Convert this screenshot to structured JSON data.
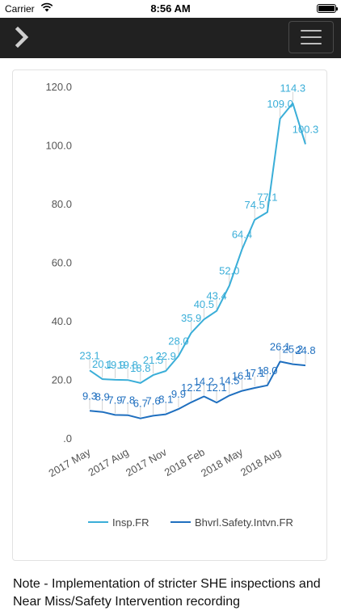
{
  "status_bar": {
    "carrier": "Carrier",
    "time": "8:56 AM",
    "battery": "full"
  },
  "nav": {
    "back_icon": "chevron-right-icon",
    "menu_icon": "hamburger-menu-icon"
  },
  "chart_data": {
    "type": "line",
    "y_ticks": [
      "120.0",
      "100.0",
      "80.0",
      "60.0",
      "40.0",
      "20.0",
      ".0"
    ],
    "ylim": [
      0,
      120
    ],
    "x_tick_labels": [
      "2017 May",
      "2017 Aug",
      "2017 Nov",
      "2018 Feb",
      "2018 May",
      "2018 Aug"
    ],
    "legend_position": "bottom",
    "colors": {
      "insp": "#3aaed8",
      "bhvrl": "#1f6fbf"
    },
    "series": [
      {
        "name": "Insp.FR",
        "values": [
          23.1,
          20.1,
          19.9,
          19.8,
          18.8,
          21.5,
          22.9,
          28.0,
          35.9,
          40.5,
          43.4,
          52.0,
          64.4,
          74.5,
          77.1,
          109.0,
          114.3,
          100.3
        ],
        "labels": [
          "23.1",
          "20.1",
          "19.9",
          "19.8",
          "18.8",
          "21.5",
          "22.9",
          "28.0",
          "35.9",
          "40.5",
          "43.4",
          "52.0",
          "64.4",
          "74.5",
          "77.1",
          "109.0",
          "114.3",
          "100.3"
        ]
      },
      {
        "name": "Bhvrl.Safety.Intvn.FR",
        "values": [
          9.3,
          8.9,
          7.9,
          7.8,
          6.7,
          7.6,
          8.1,
          9.9,
          12.2,
          14.2,
          12.1,
          14.5,
          16.1,
          17.1,
          18.0,
          26.1,
          25.2,
          24.8
        ],
        "labels": [
          "9.3",
          "8.9",
          "7.9",
          "7.8",
          "6.7",
          "7.6",
          "8.1",
          "9.9",
          "12.2",
          "14.2",
          "12.1",
          "14.5",
          "16.1",
          "17.1",
          "18.0",
          "26.1",
          "25.2",
          "24.8"
        ]
      }
    ]
  },
  "note": {
    "text": "Note - Implementation of stricter SHE inspections and Near Miss/Safety Intervention recording"
  }
}
